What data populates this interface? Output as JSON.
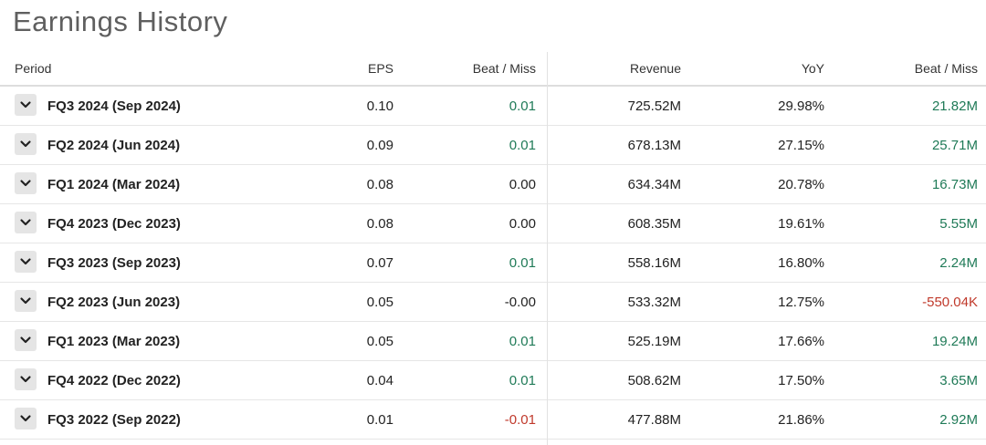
{
  "title": "Earnings History",
  "headers": {
    "period": "Period",
    "eps": "EPS",
    "eps_beat_miss": "Beat / Miss",
    "revenue": "Revenue",
    "yoy": "YoY",
    "revenue_beat_miss": "Beat / Miss"
  },
  "colors": {
    "positive": "#1f7a57",
    "negative": "#c0392b"
  },
  "rows": [
    {
      "period": "FQ3 2024 (Sep 2024)",
      "eps": "0.10",
      "eps_beat": "0.01",
      "eps_beat_sign": "pos",
      "revenue": "725.52M",
      "yoy": "29.98%",
      "rev_beat": "21.82M",
      "rev_beat_sign": "pos"
    },
    {
      "period": "FQ2 2024 (Jun 2024)",
      "eps": "0.09",
      "eps_beat": "0.01",
      "eps_beat_sign": "pos",
      "revenue": "678.13M",
      "yoy": "27.15%",
      "rev_beat": "25.71M",
      "rev_beat_sign": "pos"
    },
    {
      "period": "FQ1 2024 (Mar 2024)",
      "eps": "0.08",
      "eps_beat": "0.00",
      "eps_beat_sign": "neutral",
      "revenue": "634.34M",
      "yoy": "20.78%",
      "rev_beat": "16.73M",
      "rev_beat_sign": "pos"
    },
    {
      "period": "FQ4 2023 (Dec 2023)",
      "eps": "0.08",
      "eps_beat": "0.00",
      "eps_beat_sign": "neutral",
      "revenue": "608.35M",
      "yoy": "19.61%",
      "rev_beat": "5.55M",
      "rev_beat_sign": "pos"
    },
    {
      "period": "FQ3 2023 (Sep 2023)",
      "eps": "0.07",
      "eps_beat": "0.01",
      "eps_beat_sign": "pos",
      "revenue": "558.16M",
      "yoy": "16.80%",
      "rev_beat": "2.24M",
      "rev_beat_sign": "pos"
    },
    {
      "period": "FQ2 2023 (Jun 2023)",
      "eps": "0.05",
      "eps_beat": "-0.00",
      "eps_beat_sign": "neutral",
      "revenue": "533.32M",
      "yoy": "12.75%",
      "rev_beat": "-550.04K",
      "rev_beat_sign": "neg"
    },
    {
      "period": "FQ1 2023 (Mar 2023)",
      "eps": "0.05",
      "eps_beat": "0.01",
      "eps_beat_sign": "pos",
      "revenue": "525.19M",
      "yoy": "17.66%",
      "rev_beat": "19.24M",
      "rev_beat_sign": "pos"
    },
    {
      "period": "FQ4 2022 (Dec 2022)",
      "eps": "0.04",
      "eps_beat": "0.01",
      "eps_beat_sign": "pos",
      "revenue": "508.62M",
      "yoy": "17.50%",
      "rev_beat": "3.65M",
      "rev_beat_sign": "pos"
    },
    {
      "period": "FQ3 2022 (Sep 2022)",
      "eps": "0.01",
      "eps_beat": "-0.01",
      "eps_beat_sign": "neg",
      "revenue": "477.88M",
      "yoy": "21.86%",
      "rev_beat": "2.92M",
      "rev_beat_sign": "pos"
    }
  ],
  "icons": {
    "expand": "chevron-down-icon"
  }
}
